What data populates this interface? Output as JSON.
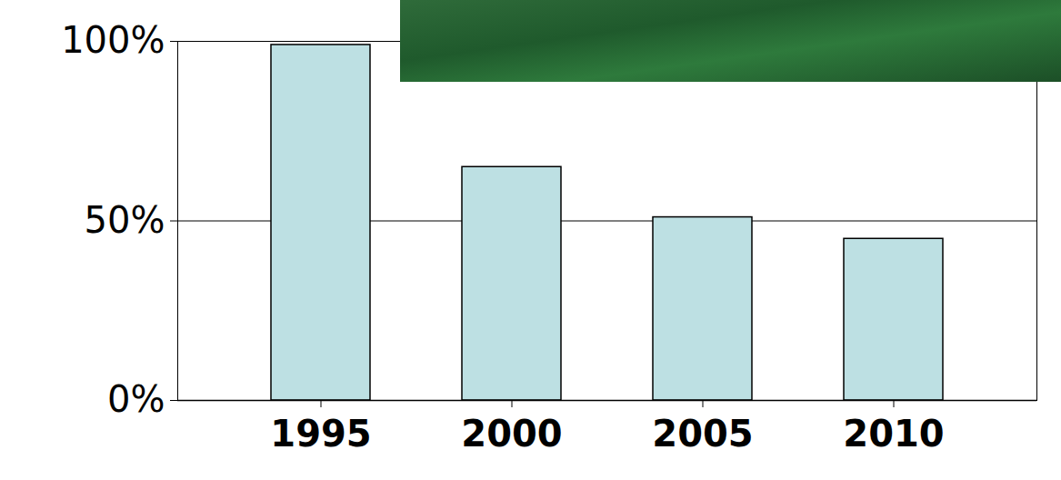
{
  "chart_data": {
    "type": "bar",
    "categories": [
      "1995",
      "2000",
      "2005",
      "2010"
    ],
    "values": [
      99,
      65,
      51,
      45
    ],
    "color": "#bde0e3",
    "ylim": [
      0,
      100
    ],
    "yticks": [
      {
        "value": 0,
        "label": "0%"
      },
      {
        "value": 50,
        "label": "50%"
      },
      {
        "value": 100,
        "label": "100%"
      }
    ],
    "grid": true
  }
}
